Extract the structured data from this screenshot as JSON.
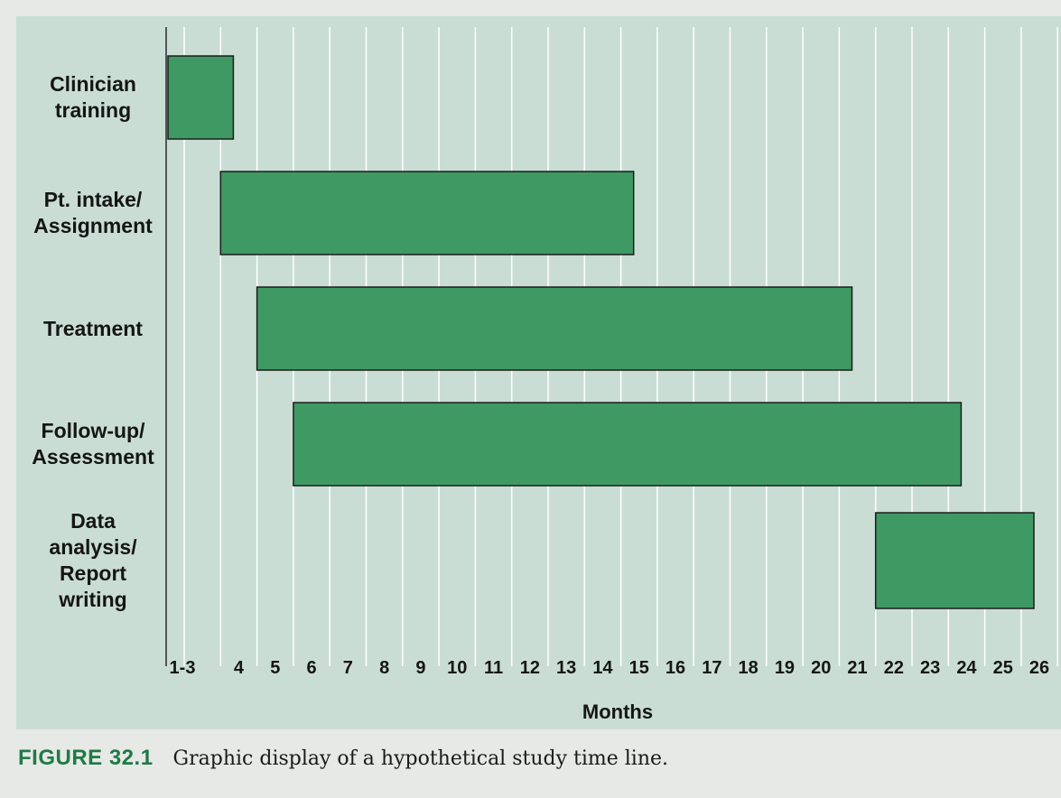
{
  "figure": {
    "label": "FIGURE 32.1",
    "caption": "Graphic display of a hypothetical study time line."
  },
  "colors": {
    "bar_fill": "#3f9962",
    "bar_stroke": "#1c1c1c",
    "plot_background": "#c9ddd5",
    "grid": "#ffffff"
  },
  "chart_data": {
    "type": "gantt",
    "title": "",
    "xlabel": "Months",
    "ylabel": "",
    "grid": true,
    "legend": "none",
    "months": [
      "1-3",
      "4",
      "5",
      "6",
      "7",
      "8",
      "9",
      "10",
      "11",
      "12",
      "13",
      "14",
      "15",
      "16",
      "17",
      "18",
      "19",
      "20",
      "21",
      "22",
      "23",
      "24",
      "25",
      "26"
    ],
    "tasks": [
      {
        "label": "Clinician\ntraining",
        "start": "1-3",
        "end": "4"
      },
      {
        "label": "Pt. intake/\nAssignment",
        "start": "4",
        "end": "15"
      },
      {
        "label": "Treatment",
        "start": "5",
        "end": "21"
      },
      {
        "label": "Follow-up/\nAssessment",
        "start": "6",
        "end": "24"
      },
      {
        "label": "Data\nanalysis/\nReport\nwriting",
        "start": "22",
        "end": "26"
      }
    ]
  }
}
